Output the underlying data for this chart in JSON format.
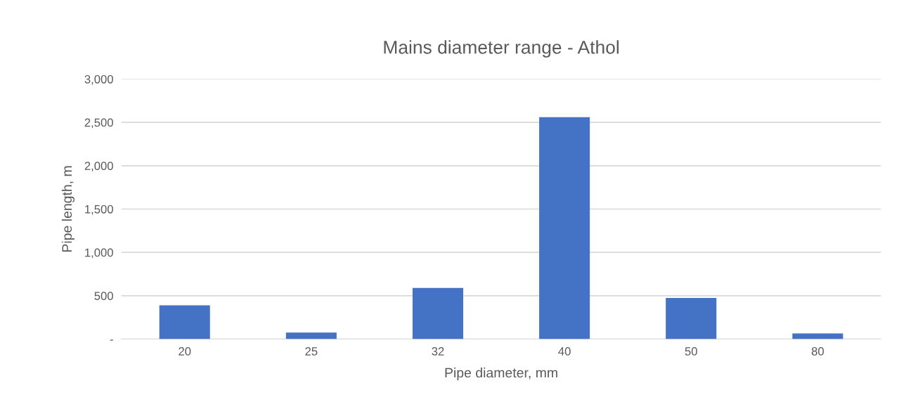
{
  "chart_data": {
    "type": "bar",
    "title": "Mains diameter range - Athol",
    "xlabel": "Pipe diameter, mm",
    "ylabel": "Pipe length, m",
    "categories": [
      "20",
      "25",
      "32",
      "40",
      "50",
      "80"
    ],
    "values": [
      390,
      75,
      590,
      2560,
      475,
      65
    ],
    "color": "#4472c4",
    "ylim": [
      0,
      3000
    ],
    "yticks": [
      {
        "value": 0,
        "label": "-"
      },
      {
        "value": 500,
        "label": "500"
      },
      {
        "value": 1000,
        "label": "1,000"
      },
      {
        "value": 1500,
        "label": "1,500"
      },
      {
        "value": 2000,
        "label": "2,000"
      },
      {
        "value": 2500,
        "label": "2,500"
      },
      {
        "value": 3000,
        "label": "3,000"
      }
    ],
    "grid": "y",
    "legend": false
  }
}
